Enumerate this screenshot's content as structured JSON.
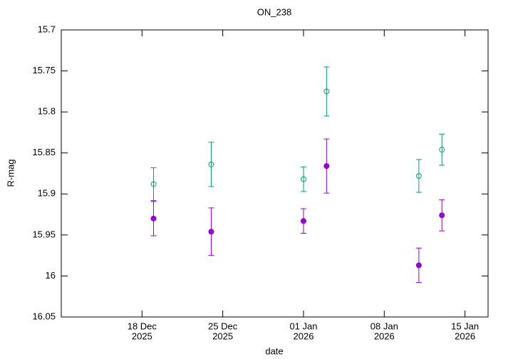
{
  "chart_data": {
    "type": "scatter",
    "title": "ON_238",
    "xlabel": "date",
    "ylabel": "R-mag",
    "x": [
      "2025-12-19",
      "2025-12-24",
      "2026-01-01",
      "2026-01-03",
      "2026-01-11",
      "2026-01-13"
    ],
    "series": [
      {
        "color": "#9400d3",
        "marker": "circle-filled",
        "values": [
          15.93,
          15.946,
          15.933,
          15.866,
          15.987,
          15.926
        ],
        "errors": [
          0.021,
          0.029,
          0.015,
          0.033,
          0.021,
          0.019
        ]
      },
      {
        "color": "#009e73",
        "marker": "circle-open",
        "values": [
          15.888,
          15.864,
          15.882,
          15.775,
          15.878,
          15.846
        ],
        "errors": [
          0.02,
          0.027,
          0.015,
          0.03,
          0.02,
          0.019
        ]
      }
    ],
    "xlim": [
      "2025-12-11",
      "2026-01-17"
    ],
    "xticks": [
      {
        "value": "2025-12-18",
        "label": [
          "18 Dec",
          "2025"
        ]
      },
      {
        "value": "2025-12-25",
        "label": [
          "25 Dec",
          "2025"
        ]
      },
      {
        "value": "2026-01-01",
        "label": [
          "01 Jan",
          "2026"
        ]
      },
      {
        "value": "2026-01-08",
        "label": [
          "08 Jan",
          "2026"
        ]
      },
      {
        "value": "2026-01-15",
        "label": [
          "15 Jan",
          "2026"
        ]
      }
    ],
    "ylim": [
      16.05,
      15.7
    ],
    "yticks": [
      15.7,
      15.75,
      15.8,
      15.85,
      15.9,
      15.95,
      16,
      16.05
    ],
    "grid": false
  }
}
